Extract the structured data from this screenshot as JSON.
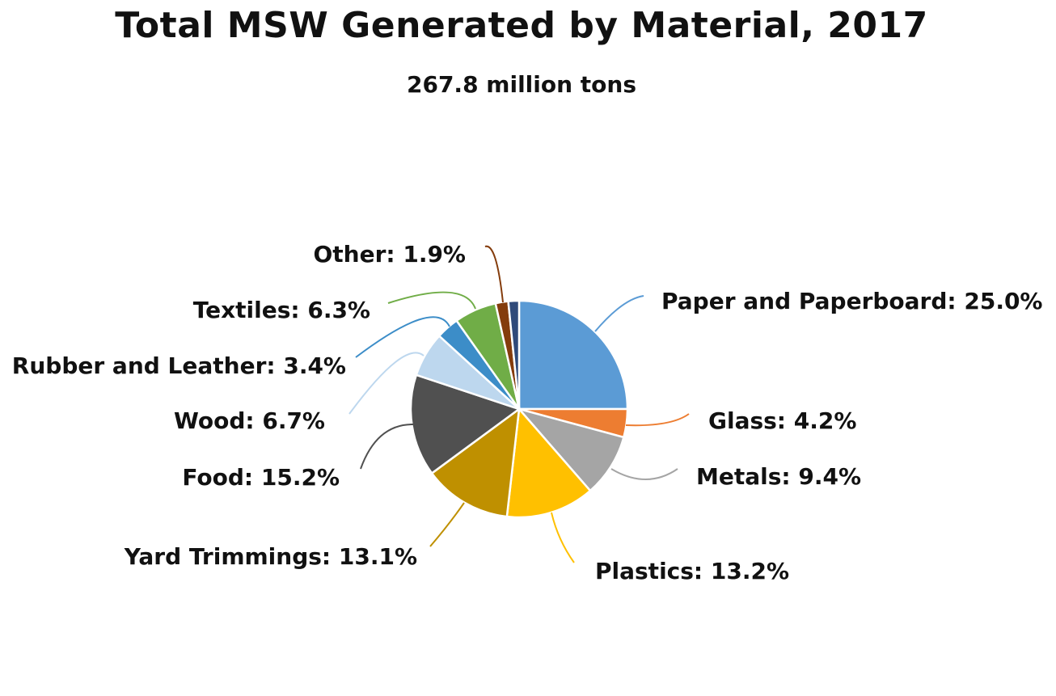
{
  "chart_data": {
    "type": "pie",
    "title": "Total MSW Generated by Material, 2017",
    "subtitle": "267.8 million tons",
    "slices": [
      {
        "label": "Paper and Paperboard: 25.0%",
        "value": 25.0,
        "color": "#5B9BD5"
      },
      {
        "label": "Glass: 4.2%",
        "value": 4.2,
        "color": "#ED7D31"
      },
      {
        "label": "Metals: 9.4%",
        "value": 9.4,
        "color": "#A5A5A5"
      },
      {
        "label": "Plastics: 13.2%",
        "value": 13.2,
        "color": "#FFC000"
      },
      {
        "label": "Yard Trimmings: 13.1%",
        "value": 13.1,
        "color": "#BF9000"
      },
      {
        "label": "Food: 15.2%",
        "value": 15.2,
        "color": "#505050"
      },
      {
        "label": "Wood: 6.7%",
        "value": 6.7,
        "color": "#BDD7EE"
      },
      {
        "label": "Rubber and Leather: 3.4%",
        "value": 3.4,
        "color": "#3C8DC8"
      },
      {
        "label": "Textiles: 6.3%",
        "value": 6.3,
        "color": "#70AD47"
      },
      {
        "label": "Other: 1.9%",
        "value": 1.9,
        "color": "#843C0C"
      },
      {
        "label": "",
        "value": 1.6,
        "color": "#2F4A7A"
      }
    ]
  }
}
